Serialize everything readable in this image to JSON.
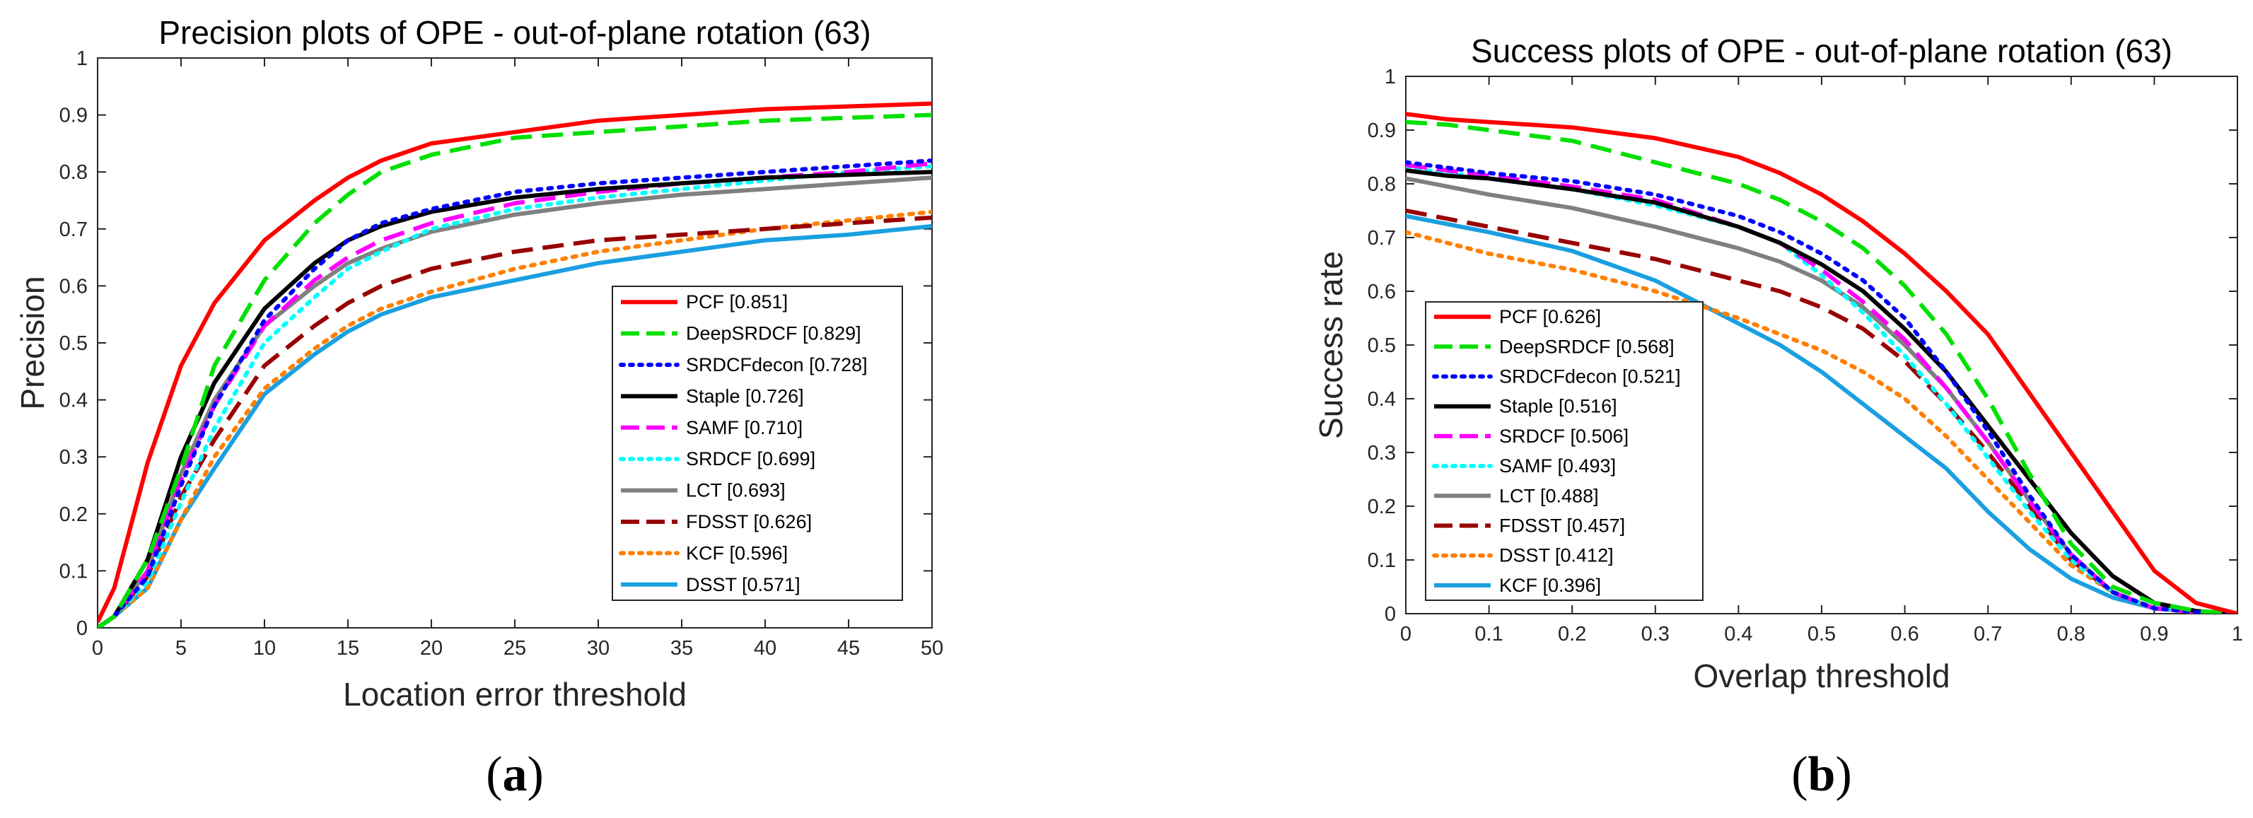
{
  "chart_data": [
    {
      "type": "line",
      "title": "Precision plots of OPE - out-of-plane rotation (63)",
      "xlabel": "Location error threshold",
      "ylabel": "Precision",
      "xlim": [
        0,
        50
      ],
      "ylim": [
        0,
        1
      ],
      "xticks": [
        "0",
        "5",
        "10",
        "15",
        "20",
        "25",
        "30",
        "35",
        "40",
        "45",
        "50"
      ],
      "yticks": [
        "0",
        "0.1",
        "0.2",
        "0.3",
        "0.4",
        "0.5",
        "0.6",
        "0.7",
        "0.8",
        "0.9",
        "1"
      ],
      "grid": false,
      "legend_position": "lower-right",
      "subfigure_label": "a",
      "series": [
        {
          "name": "PCF [0.851]",
          "color": "#ff0000",
          "style": "solid",
          "x": [
            0,
            1,
            3,
            5,
            7,
            10,
            13,
            15,
            17,
            20,
            25,
            30,
            35,
            40,
            45,
            50
          ],
          "y": [
            0.01,
            0.07,
            0.29,
            0.46,
            0.57,
            0.68,
            0.75,
            0.79,
            0.82,
            0.85,
            0.87,
            0.89,
            0.9,
            0.91,
            0.915,
            0.92
          ]
        },
        {
          "name": "DeepSRDCF [0.829]",
          "color": "#00e000",
          "style": "dashed",
          "x": [
            0,
            1,
            3,
            5,
            7,
            10,
            13,
            15,
            17,
            20,
            25,
            30,
            35,
            40,
            45,
            50
          ],
          "y": [
            0.0,
            0.02,
            0.12,
            0.28,
            0.46,
            0.61,
            0.71,
            0.76,
            0.8,
            0.83,
            0.86,
            0.87,
            0.88,
            0.89,
            0.895,
            0.9
          ]
        },
        {
          "name": "SRDCFdecon [0.728]",
          "color": "#0000ff",
          "style": "dotted",
          "x": [
            0,
            1,
            3,
            5,
            7,
            10,
            13,
            15,
            17,
            20,
            25,
            30,
            35,
            40,
            45,
            50
          ],
          "y": [
            0.0,
            0.02,
            0.09,
            0.25,
            0.39,
            0.54,
            0.63,
            0.68,
            0.71,
            0.735,
            0.765,
            0.78,
            0.79,
            0.8,
            0.81,
            0.82
          ]
        },
        {
          "name": "Staple [0.726]",
          "color": "#000000",
          "style": "solid",
          "x": [
            0,
            1,
            3,
            5,
            7,
            10,
            13,
            15,
            17,
            20,
            25,
            30,
            35,
            40,
            45,
            50
          ],
          "y": [
            0.0,
            0.02,
            0.12,
            0.3,
            0.43,
            0.56,
            0.64,
            0.68,
            0.705,
            0.73,
            0.755,
            0.77,
            0.78,
            0.79,
            0.795,
            0.8
          ]
        },
        {
          "name": "SAMF [0.710]",
          "color": "#ff00ff",
          "style": "dashed",
          "x": [
            0,
            1,
            3,
            5,
            7,
            10,
            13,
            15,
            17,
            20,
            25,
            30,
            35,
            40,
            45,
            50
          ],
          "y": [
            0.0,
            0.02,
            0.1,
            0.26,
            0.39,
            0.53,
            0.61,
            0.65,
            0.68,
            0.71,
            0.745,
            0.765,
            0.78,
            0.79,
            0.8,
            0.815
          ]
        },
        {
          "name": "SRDCF [0.699]",
          "color": "#00ffff",
          "style": "dotted",
          "x": [
            0,
            1,
            3,
            5,
            7,
            10,
            13,
            15,
            17,
            20,
            25,
            30,
            35,
            40,
            45,
            50
          ],
          "y": [
            0.0,
            0.02,
            0.08,
            0.22,
            0.35,
            0.5,
            0.58,
            0.63,
            0.66,
            0.7,
            0.735,
            0.755,
            0.77,
            0.785,
            0.8,
            0.81
          ]
        },
        {
          "name": "LCT [0.693]",
          "color": "#808080",
          "style": "solid",
          "x": [
            0,
            1,
            3,
            5,
            7,
            10,
            13,
            15,
            17,
            20,
            25,
            30,
            35,
            40,
            45,
            50
          ],
          "y": [
            0.0,
            0.02,
            0.1,
            0.27,
            0.4,
            0.53,
            0.6,
            0.64,
            0.665,
            0.695,
            0.725,
            0.745,
            0.76,
            0.77,
            0.78,
            0.79
          ]
        },
        {
          "name": "FDSST [0.626]",
          "color": "#990000",
          "style": "dashed",
          "x": [
            0,
            1,
            3,
            5,
            7,
            10,
            13,
            15,
            17,
            20,
            25,
            30,
            35,
            40,
            45,
            50
          ],
          "y": [
            0.0,
            0.02,
            0.09,
            0.23,
            0.33,
            0.46,
            0.53,
            0.57,
            0.6,
            0.63,
            0.66,
            0.68,
            0.69,
            0.7,
            0.71,
            0.72
          ]
        },
        {
          "name": "KCF [0.596]",
          "color": "#ff8000",
          "style": "dotted",
          "x": [
            0,
            1,
            3,
            5,
            7,
            10,
            13,
            15,
            17,
            20,
            25,
            30,
            35,
            40,
            45,
            50
          ],
          "y": [
            0.0,
            0.02,
            0.07,
            0.19,
            0.3,
            0.42,
            0.49,
            0.53,
            0.56,
            0.59,
            0.63,
            0.66,
            0.68,
            0.7,
            0.715,
            0.73
          ]
        },
        {
          "name": "DSST [0.571]",
          "color": "#1a9fe0",
          "style": "solid",
          "x": [
            0,
            1,
            3,
            5,
            7,
            10,
            13,
            15,
            17,
            20,
            25,
            30,
            35,
            40,
            45,
            50
          ],
          "y": [
            0.0,
            0.02,
            0.07,
            0.19,
            0.28,
            0.41,
            0.48,
            0.52,
            0.55,
            0.58,
            0.61,
            0.64,
            0.66,
            0.68,
            0.69,
            0.705
          ]
        }
      ]
    },
    {
      "type": "line",
      "title": "Success plots of OPE - out-of-plane rotation (63)",
      "xlabel": "Overlap threshold",
      "ylabel": "Success rate",
      "xlim": [
        0,
        1
      ],
      "ylim": [
        0,
        1
      ],
      "xticks": [
        "0",
        "0.1",
        "0.2",
        "0.3",
        "0.4",
        "0.5",
        "0.6",
        "0.7",
        "0.8",
        "0.9",
        "1"
      ],
      "yticks": [
        "0",
        "0.1",
        "0.2",
        "0.3",
        "0.4",
        "0.5",
        "0.6",
        "0.7",
        "0.8",
        "0.9",
        "1"
      ],
      "grid": false,
      "legend_position": "lower-left",
      "subfigure_label": "b",
      "series": [
        {
          "name": "PCF [0.626]",
          "color": "#ff0000",
          "style": "solid",
          "x": [
            0,
            0.05,
            0.1,
            0.2,
            0.3,
            0.4,
            0.45,
            0.5,
            0.55,
            0.6,
            0.65,
            0.7,
            0.75,
            0.8,
            0.85,
            0.9,
            0.95,
            1.0
          ],
          "y": [
            0.93,
            0.92,
            0.915,
            0.905,
            0.885,
            0.85,
            0.82,
            0.78,
            0.73,
            0.67,
            0.6,
            0.52,
            0.41,
            0.3,
            0.19,
            0.08,
            0.02,
            0.0
          ]
        },
        {
          "name": "DeepSRDCF [0.568]",
          "color": "#00e000",
          "style": "dashed",
          "x": [
            0,
            0.05,
            0.1,
            0.2,
            0.3,
            0.4,
            0.45,
            0.5,
            0.55,
            0.6,
            0.65,
            0.7,
            0.75,
            0.8,
            0.85,
            0.9,
            0.95,
            1.0
          ],
          "y": [
            0.915,
            0.91,
            0.9,
            0.88,
            0.84,
            0.8,
            0.77,
            0.73,
            0.68,
            0.61,
            0.52,
            0.4,
            0.26,
            0.13,
            0.05,
            0.02,
            0.005,
            0.0
          ]
        },
        {
          "name": "SRDCFdecon [0.521]",
          "color": "#0000ff",
          "style": "dotted",
          "x": [
            0,
            0.05,
            0.1,
            0.2,
            0.3,
            0.4,
            0.45,
            0.5,
            0.55,
            0.6,
            0.65,
            0.7,
            0.75,
            0.8,
            0.85,
            0.9,
            0.95,
            1.0
          ],
          "y": [
            0.84,
            0.83,
            0.82,
            0.805,
            0.78,
            0.74,
            0.71,
            0.67,
            0.62,
            0.55,
            0.45,
            0.34,
            0.22,
            0.11,
            0.04,
            0.01,
            0.003,
            0.0
          ]
        },
        {
          "name": "Staple [0.516]",
          "color": "#000000",
          "style": "solid",
          "x": [
            0,
            0.05,
            0.1,
            0.2,
            0.3,
            0.4,
            0.45,
            0.5,
            0.55,
            0.6,
            0.65,
            0.7,
            0.75,
            0.8,
            0.85,
            0.9,
            0.95,
            1.0
          ],
          "y": [
            0.825,
            0.815,
            0.81,
            0.79,
            0.765,
            0.72,
            0.69,
            0.65,
            0.6,
            0.53,
            0.45,
            0.35,
            0.25,
            0.15,
            0.07,
            0.02,
            0.005,
            0.0
          ]
        },
        {
          "name": "SRDCF [0.506]",
          "color": "#ff00ff",
          "style": "dashed",
          "x": [
            0,
            0.05,
            0.1,
            0.2,
            0.3,
            0.4,
            0.45,
            0.5,
            0.55,
            0.6,
            0.65,
            0.7,
            0.75,
            0.8,
            0.85,
            0.9,
            0.95,
            1.0
          ],
          "y": [
            0.835,
            0.825,
            0.815,
            0.795,
            0.77,
            0.72,
            0.69,
            0.64,
            0.58,
            0.51,
            0.42,
            0.32,
            0.21,
            0.11,
            0.04,
            0.01,
            0.003,
            0.0
          ]
        },
        {
          "name": "SAMF [0.493]",
          "color": "#00ffff",
          "style": "dotted",
          "x": [
            0,
            0.05,
            0.1,
            0.2,
            0.3,
            0.4,
            0.45,
            0.5,
            0.55,
            0.6,
            0.65,
            0.7,
            0.75,
            0.8,
            0.85,
            0.9,
            0.95,
            1.0
          ],
          "y": [
            0.83,
            0.82,
            0.81,
            0.79,
            0.76,
            0.72,
            0.69,
            0.63,
            0.56,
            0.48,
            0.39,
            0.29,
            0.19,
            0.1,
            0.04,
            0.01,
            0.003,
            0.0
          ]
        },
        {
          "name": "LCT [0.488]",
          "color": "#808080",
          "style": "solid",
          "x": [
            0,
            0.05,
            0.1,
            0.2,
            0.3,
            0.4,
            0.45,
            0.5,
            0.55,
            0.6,
            0.65,
            0.7,
            0.75,
            0.8,
            0.85,
            0.9,
            0.95,
            1.0
          ],
          "y": [
            0.81,
            0.795,
            0.78,
            0.755,
            0.72,
            0.68,
            0.655,
            0.62,
            0.57,
            0.5,
            0.42,
            0.32,
            0.21,
            0.11,
            0.04,
            0.01,
            0.003,
            0.0
          ]
        },
        {
          "name": "FDSST [0.457]",
          "color": "#990000",
          "style": "dashed",
          "x": [
            0,
            0.05,
            0.1,
            0.2,
            0.3,
            0.4,
            0.45,
            0.5,
            0.55,
            0.6,
            0.65,
            0.7,
            0.75,
            0.8,
            0.85,
            0.9,
            0.95,
            1.0
          ],
          "y": [
            0.75,
            0.735,
            0.72,
            0.69,
            0.66,
            0.62,
            0.6,
            0.57,
            0.53,
            0.47,
            0.39,
            0.3,
            0.2,
            0.1,
            0.04,
            0.01,
            0.003,
            0.0
          ]
        },
        {
          "name": "DSST [0.412]",
          "color": "#ff8000",
          "style": "dotted",
          "x": [
            0,
            0.05,
            0.1,
            0.2,
            0.3,
            0.4,
            0.45,
            0.5,
            0.55,
            0.6,
            0.65,
            0.7,
            0.75,
            0.8,
            0.85,
            0.9,
            0.95,
            1.0
          ],
          "y": [
            0.71,
            0.69,
            0.67,
            0.64,
            0.6,
            0.55,
            0.52,
            0.49,
            0.45,
            0.4,
            0.33,
            0.25,
            0.17,
            0.09,
            0.04,
            0.01,
            0.003,
            0.0
          ]
        },
        {
          "name": "KCF [0.396]",
          "color": "#1a9fe0",
          "style": "solid",
          "x": [
            0,
            0.05,
            0.1,
            0.2,
            0.3,
            0.4,
            0.45,
            0.5,
            0.55,
            0.6,
            0.65,
            0.7,
            0.75,
            0.8,
            0.85,
            0.9,
            0.95,
            1.0
          ],
          "y": [
            0.74,
            0.725,
            0.71,
            0.675,
            0.62,
            0.54,
            0.5,
            0.45,
            0.39,
            0.33,
            0.27,
            0.19,
            0.12,
            0.065,
            0.03,
            0.01,
            0.003,
            0.0
          ]
        }
      ]
    }
  ]
}
